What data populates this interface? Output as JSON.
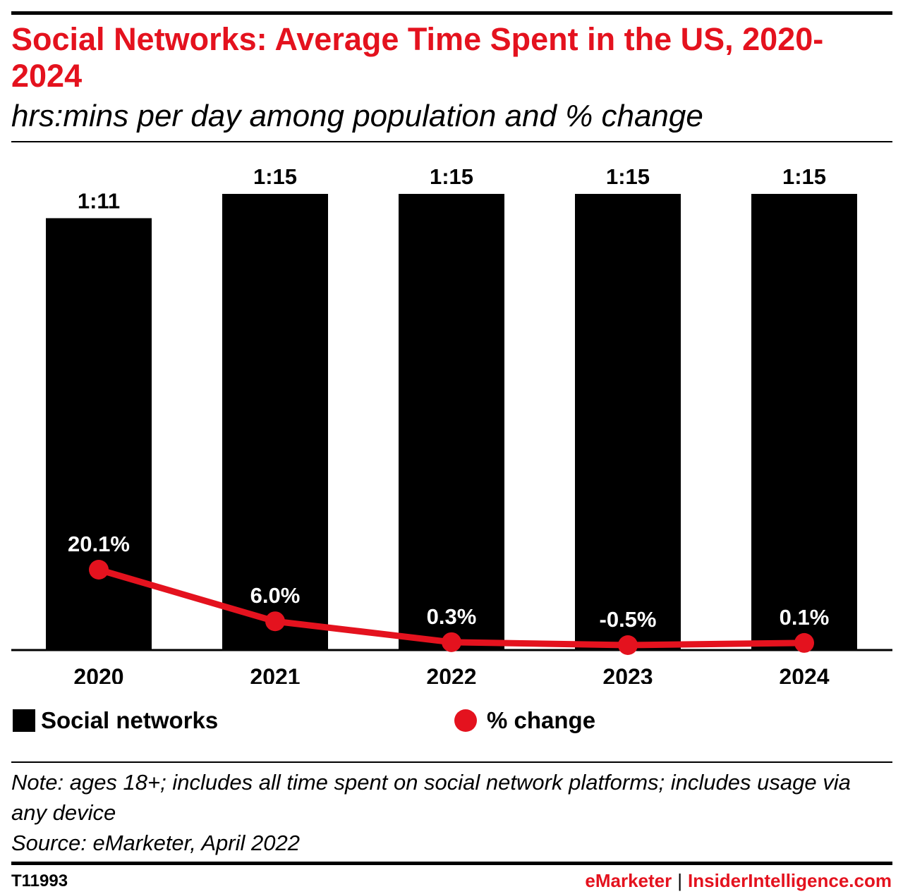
{
  "header": {
    "title": "Social Networks: Average Time Spent in the US, 2020-2024",
    "subtitle": "hrs:mins per day among population and % change"
  },
  "chart_data": {
    "type": "bar",
    "categories": [
      "2020",
      "2021",
      "2022",
      "2023",
      "2024"
    ],
    "series": [
      {
        "name": "Social networks",
        "kind": "bar",
        "values_minutes": [
          71,
          75,
          75,
          75,
          75
        ],
        "labels": [
          "1:11",
          "1:15",
          "1:15",
          "1:15",
          "1:15"
        ],
        "color": "#000000"
      },
      {
        "name": "% change",
        "kind": "line",
        "values": [
          20.1,
          6.0,
          0.3,
          -0.5,
          0.1
        ],
        "labels": [
          "20.1%",
          "6.0%",
          "0.3%",
          "-0.5%",
          "0.1%"
        ],
        "color": "#e4121e"
      }
    ],
    "legend_position": "bottom",
    "grid": false
  },
  "legend": {
    "bar_label": "Social networks",
    "line_label": "% change"
  },
  "note": {
    "text": "Note: ages 18+; includes all time spent on social network platforms; includes usage via any device",
    "source": "Source: eMarketer, April 2022"
  },
  "footer": {
    "chart_id": "T11993",
    "brand_primary": "eMarketer",
    "brand_separator": "|",
    "brand_secondary": "InsiderIntelligence.com"
  }
}
